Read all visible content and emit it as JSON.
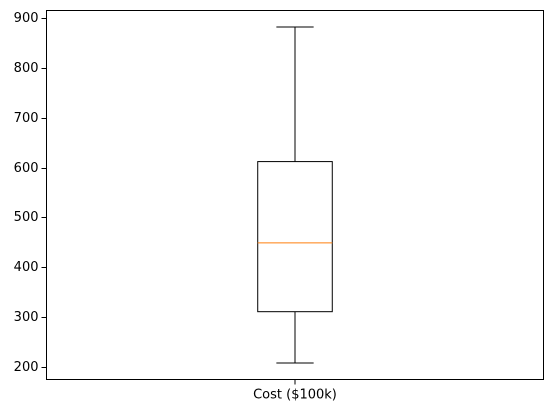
{
  "chart_data": {
    "type": "box",
    "title": "",
    "xlabel": "",
    "ylabel": "",
    "categories": [
      "Cost ($100k)"
    ],
    "boxes": [
      {
        "category": "Cost ($100k)",
        "whisker_low": 208,
        "q1": 311,
        "median": 449,
        "q3": 612,
        "whisker_high": 882
      }
    ],
    "y_ticks": [
      200,
      300,
      400,
      500,
      600,
      700,
      800,
      900
    ],
    "ylim": [
      175,
      915
    ],
    "grid": false,
    "legend": "none",
    "colors": {
      "box": "#000000",
      "median": "#ff7f0e",
      "axes": "#000000",
      "background": "#ffffff"
    }
  }
}
